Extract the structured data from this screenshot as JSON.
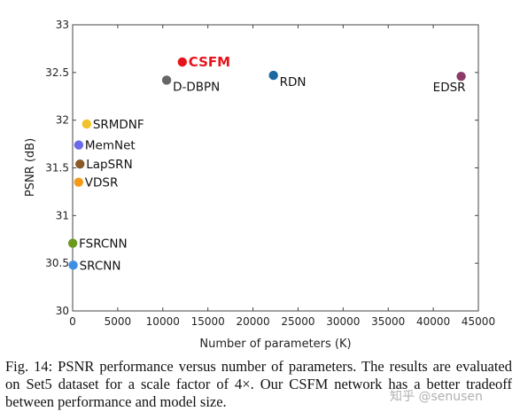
{
  "chart_data": {
    "type": "scatter",
    "xlabel": "Number of parameters (K)",
    "ylabel": "PSNR (dB)",
    "xlim": [
      0,
      45000
    ],
    "ylim": [
      30,
      33
    ],
    "xticks": [
      0,
      5000,
      10000,
      15000,
      20000,
      25000,
      30000,
      35000,
      40000,
      45000
    ],
    "yticks": [
      30,
      30.5,
      31,
      31.5,
      32,
      32.5,
      33
    ],
    "grid": false,
    "points": [
      {
        "label": "SRCNN",
        "x": 57,
        "y": 30.48,
        "color": "#3d8fe3",
        "label_pos": "right"
      },
      {
        "label": "FSRCNN",
        "x": 12,
        "y": 30.71,
        "color": "#6b9a1f",
        "label_pos": "right"
      },
      {
        "label": "VDSR",
        "x": 665,
        "y": 31.35,
        "color": "#f59b19",
        "label_pos": "right"
      },
      {
        "label": "LapSRN",
        "x": 812,
        "y": 31.54,
        "color": "#8b5a2b",
        "label_pos": "right"
      },
      {
        "label": "MemNet",
        "x": 677,
        "y": 31.74,
        "color": "#6a6ae8",
        "label_pos": "right"
      },
      {
        "label": "SRMDNF",
        "x": 1555,
        "y": 31.96,
        "color": "#f2c22a",
        "label_pos": "right"
      },
      {
        "label": "D-DBPN",
        "x": 10426,
        "y": 32.42,
        "color": "#666666",
        "label_pos": "below-right"
      },
      {
        "label": "CSFM",
        "x": 12163,
        "y": 32.61,
        "color": "#e8141c",
        "label_pos": "right",
        "highlight": true
      },
      {
        "label": "RDN",
        "x": 22271,
        "y": 32.47,
        "color": "#1a6aa0",
        "label_pos": "below-right"
      },
      {
        "label": "EDSR",
        "x": 43090,
        "y": 32.46,
        "color": "#8b3a6a",
        "label_pos": "below-left"
      }
    ]
  },
  "caption": "Fig. 14: PSNR performance versus number of parameters. The results are evaluated on Set5 dataset for a scale factor of 4×. Our CSFM network has a better tradeoff between performance and model size.",
  "watermark": "知乎 @senusen"
}
